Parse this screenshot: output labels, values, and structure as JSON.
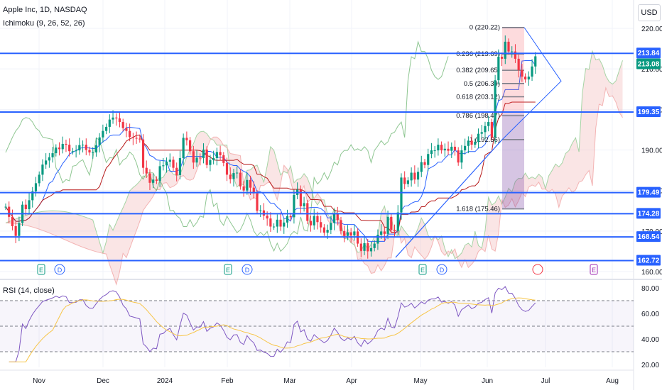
{
  "header": {
    "symbol_title": "Apple Inc, 1D, NASDAQ",
    "indicator": "Ichimoku (9, 26, 52, 26)",
    "currency": "USD"
  },
  "rsi_panel": {
    "title": "RSI (14, close)"
  },
  "colors": {
    "up": "#089981",
    "down": "#f23645",
    "hline": "#2962ff",
    "rsi": "#7e57c2",
    "rsi_ma": "#f7c548",
    "lagging": "#43a047",
    "kijun": "#b71c1c",
    "tenkan": "#2962ff"
  },
  "chart_data": [
    {
      "type": "candlestick",
      "title": "Apple Inc, 1D, NASDAQ",
      "x_ticks": [
        "Nov",
        "Dec",
        "2024",
        "Feb",
        "Mar",
        "Apr",
        "May",
        "Jun",
        "Jul",
        "Aug"
      ],
      "y_ticks": [
        160,
        170,
        180,
        190,
        200,
        210,
        220
      ],
      "ylim": [
        160,
        223
      ],
      "grid": true,
      "horizontal_levels": [
        213.84,
        199.35,
        179.49,
        174.28,
        168.54,
        162.72
      ],
      "price_labels": [
        {
          "value": 213.84,
          "label": "213.84"
        },
        {
          "value": 213.08,
          "label": "213.08"
        },
        {
          "value": 199.35,
          "label": "199.35"
        },
        {
          "value": 179.49,
          "label": "179.49"
        },
        {
          "value": 174.28,
          "label": "174.28"
        },
        {
          "value": 168.54,
          "label": "168.54"
        },
        {
          "value": 162.72,
          "label": "162.72"
        }
      ],
      "fibonacci": [
        {
          "ratio": "0",
          "price": 220.22,
          "label": "0 (220.22)"
        },
        {
          "ratio": "0.236",
          "price": 213.69,
          "label": "0.236 (213.69)"
        },
        {
          "ratio": "0.382",
          "price": 209.65,
          "label": "0.382 (209.65)"
        },
        {
          "ratio": "0.5",
          "price": 206.39,
          "label": "0.5 (206.39)"
        },
        {
          "ratio": "0.618",
          "price": 203.12,
          "label": "0.618 (203.12)"
        },
        {
          "ratio": "0.786",
          "price": 198.47,
          "label": "0.786 (198.47)"
        },
        {
          "ratio": "1",
          "price": 192.56,
          "label": "1 (192.56)"
        },
        {
          "ratio": "1.618",
          "price": 175.46,
          "label": "1.618 (175.46)"
        }
      ],
      "event_markers": [
        "E",
        "D",
        "E",
        "D",
        "E",
        "D",
        "E"
      ],
      "closes": [
        176,
        173.5,
        171.2,
        168.8,
        172,
        176.5,
        175.4,
        177.6,
        179.8,
        181.8,
        183.9,
        186.4,
        187.4,
        188.2,
        189.2,
        190.6,
        190.2,
        191.5,
        191.3,
        189.7,
        189.7,
        189.9,
        191.2,
        191.3,
        190,
        189.4,
        189.4,
        191.2,
        193.1,
        194.7,
        195.7,
        197.5,
        198,
        197.8,
        196.9,
        195.4,
        194.7,
        193.2,
        193,
        192.8,
        192.6,
        185.6,
        184.2,
        181.9,
        182.7,
        182.4,
        186,
        186.2,
        187.1,
        187.6,
        185.6,
        183.8,
        188,
        193,
        192.4,
        189.7,
        186.9,
        188.1,
        188,
        190.1,
        186.3,
        187.5,
        188,
        189.5,
        188.7,
        186.8,
        183.9,
        182.8,
        184.3,
        184.4,
        181,
        180,
        182.6,
        180.7,
        179.3,
        175,
        175.1,
        173.8,
        173.1,
        171.1,
        171.1,
        172.8,
        171.1,
        172.1,
        173.7,
        173.4,
        178.9,
        180.2,
        176.1,
        176.9,
        172.5,
        171.4,
        173.7,
        172.2,
        170.9,
        169.6,
        170.3,
        172,
        174.4,
        172.7,
        170,
        168.8,
        169.7,
        168.9,
        169.9,
        166.9,
        165.1,
        167,
        165,
        165.8,
        166.9,
        169.1,
        169.9,
        169.3,
        173.5,
        170.3,
        170,
        174.6,
        183.2,
        181.6,
        182.5,
        184.4,
        182.7,
        184.6,
        187,
        186.3,
        189,
        189.9,
        189.9,
        191.3,
        189.9,
        190.3,
        189.8,
        190.8,
        189.9,
        186.9,
        189.9,
        191,
        192.3,
        191.3,
        192,
        194,
        194.4,
        195.9,
        196.9,
        193.1,
        207.2,
        213,
        212.5,
        216.7,
        214.3,
        214.3,
        212.5,
        209.7,
        208.1,
        207.4,
        208.1,
        210.6,
        213.1
      ]
    },
    {
      "type": "line",
      "title": "RSI (14, close)",
      "y_ticks": [
        20,
        40,
        60,
        80
      ],
      "ylim": [
        18,
        84
      ],
      "bands": [
        30,
        50,
        70
      ]
    }
  ]
}
